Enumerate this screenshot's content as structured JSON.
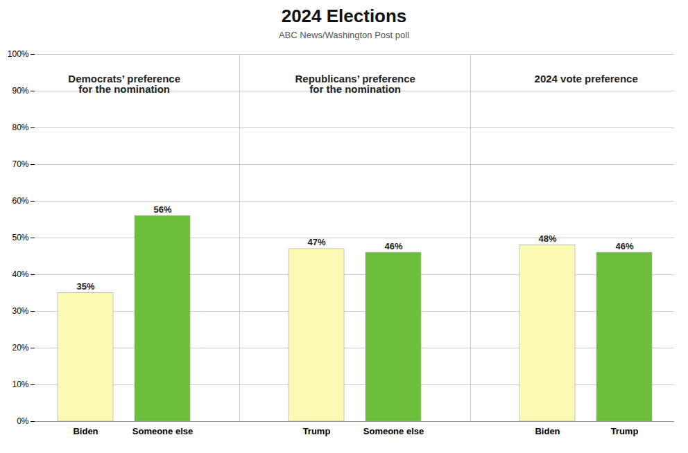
{
  "chart_data": {
    "type": "bar",
    "title": "2024 Elections",
    "subtitle": "ABC News/Washington Post poll",
    "categories": [
      "Biden",
      "Someone else",
      "Trump",
      "Someone else",
      "Biden",
      "Trump"
    ],
    "values": [
      35,
      56,
      47,
      46,
      48,
      46
    ],
    "value_labels": [
      "35%",
      "56%",
      "47%",
      "46%",
      "48%",
      "46%"
    ],
    "data_labels": true,
    "colors": [
      "#fafab4",
      "#6bbf3a",
      "#fafab4",
      "#6bbf3a",
      "#fafab4",
      "#6bbf3a"
    ],
    "annotations": [
      "Democrats’ preference\nfor the nomination",
      "Republicans’ preference\nfor the nomination",
      "2024 vote preference"
    ],
    "ylim": [
      0,
      100
    ],
    "yticks": [
      {
        "value": 0,
        "label": "0%"
      },
      {
        "value": 10,
        "label": "10%"
      },
      {
        "value": 20,
        "label": "20%"
      },
      {
        "value": 30,
        "label": "30%"
      },
      {
        "value": 40,
        "label": "40%"
      },
      {
        "value": 50,
        "label": "50%"
      },
      {
        "value": 60,
        "label": "60%"
      },
      {
        "value": 70,
        "label": "70%"
      },
      {
        "value": 80,
        "label": "80%"
      },
      {
        "value": 90,
        "label": "90%"
      },
      {
        "value": 100,
        "label": "100%"
      }
    ],
    "grid": true
  }
}
